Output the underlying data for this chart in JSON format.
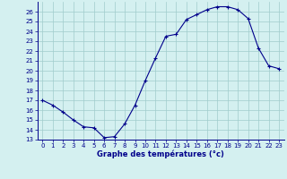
{
  "hours": [
    0,
    1,
    2,
    3,
    4,
    5,
    6,
    7,
    8,
    9,
    10,
    11,
    12,
    13,
    14,
    15,
    16,
    17,
    18,
    19,
    20,
    21,
    22,
    23
  ],
  "temperatures": [
    17.0,
    16.5,
    15.8,
    15.0,
    14.3,
    14.2,
    13.2,
    13.3,
    14.6,
    16.5,
    19.0,
    21.3,
    23.5,
    23.7,
    25.2,
    25.7,
    26.2,
    26.5,
    26.5,
    26.2,
    25.3,
    22.3,
    20.5,
    20.2
  ],
  "ylim": [
    13,
    27
  ],
  "xlim": [
    -0.5,
    23.5
  ],
  "yticks": [
    13,
    14,
    15,
    16,
    17,
    18,
    19,
    20,
    21,
    22,
    23,
    24,
    25,
    26
  ],
  "xticks": [
    0,
    1,
    2,
    3,
    4,
    5,
    6,
    7,
    8,
    9,
    10,
    11,
    12,
    13,
    14,
    15,
    16,
    17,
    18,
    19,
    20,
    21,
    22,
    23
  ],
  "xlabel": "Graphe des températures (°c)",
  "line_color": "#00008b",
  "marker": "+",
  "bg_color": "#d4f0f0",
  "grid_color": "#a0cccc",
  "axis_color": "#00008b",
  "tick_color": "#00008b",
  "label_color": "#00008b"
}
